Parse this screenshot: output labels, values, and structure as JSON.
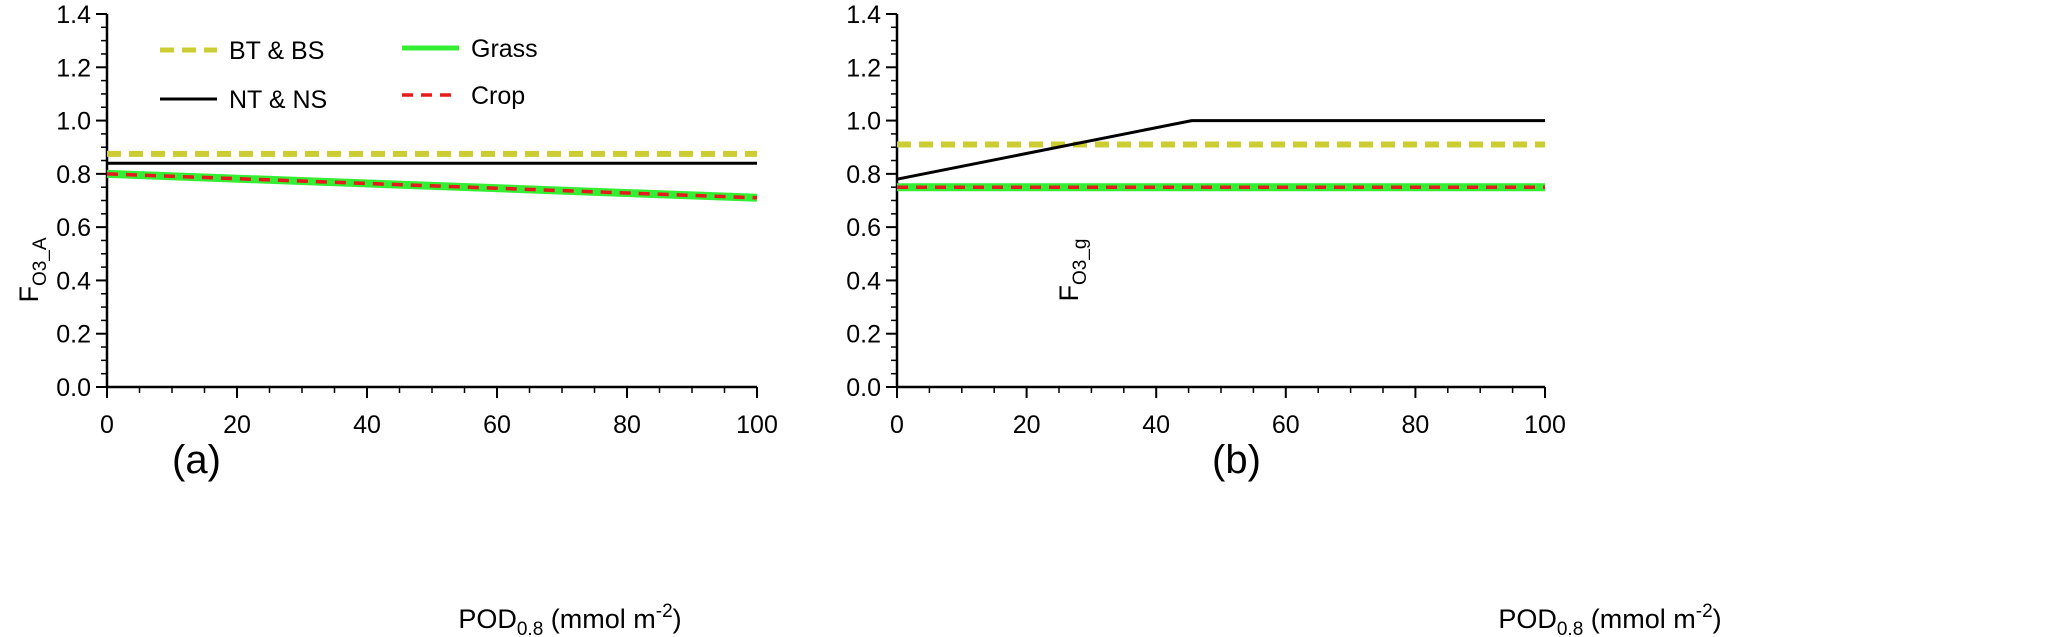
{
  "chart_data": [
    {
      "type": "line",
      "panel_label": "(a)",
      "ylabel": {
        "main": "F",
        "sub": "O3_A"
      },
      "xlabel": {
        "main": "POD",
        "sub": "0.8",
        "unit_pre": " (mmol m",
        "unit_sup": "-2",
        "unit_post": ")"
      },
      "xlim": [
        0,
        100
      ],
      "ylim": [
        0,
        1.4
      ],
      "xticks": [
        "0",
        "20",
        "40",
        "60",
        "80",
        "100"
      ],
      "yticks": [
        "0.0",
        "0.2",
        "0.4",
        "0.6",
        "0.8",
        "1.0",
        "1.2",
        "1.4"
      ],
      "grid": false,
      "legend_placement": "top-left",
      "series": [
        {
          "name": "BT & BS",
          "style": "dashed",
          "color": "#cccc33",
          "x": [
            0,
            100
          ],
          "y": [
            0.875,
            0.875
          ]
        },
        {
          "name": "NT & NS",
          "style": "solid",
          "color": "#000000",
          "x": [
            0,
            100
          ],
          "y": [
            0.84,
            0.84
          ]
        },
        {
          "name": "Grass",
          "style": "solid",
          "color": "#33ee33",
          "x": [
            0,
            100
          ],
          "y": [
            0.8,
            0.71
          ]
        },
        {
          "name": "Crop",
          "style": "dashed",
          "color": "#e51a1a",
          "x": [
            0,
            100
          ],
          "y": [
            0.8,
            0.71
          ]
        }
      ]
    },
    {
      "type": "line",
      "panel_label": "(b)",
      "ylabel": {
        "main": "F",
        "sub": "O3_g"
      },
      "xlabel": {
        "main": "POD",
        "sub": "0.8",
        "unit_pre": " (mmol m",
        "unit_sup": "-2",
        "unit_post": ")"
      },
      "xlim": [
        0,
        100
      ],
      "ylim": [
        0,
        1.4
      ],
      "xticks": [
        "0",
        "20",
        "40",
        "60",
        "80",
        "100"
      ],
      "yticks": [
        "0.0",
        "0.2",
        "0.4",
        "0.6",
        "0.8",
        "1.0",
        "1.2",
        "1.4"
      ],
      "grid": false,
      "series": [
        {
          "name": "BT & BS",
          "style": "dashed",
          "color": "#cccc33",
          "x": [
            0,
            100
          ],
          "y": [
            0.91,
            0.91
          ]
        },
        {
          "name": "NT & NS",
          "style": "solid",
          "color": "#000000",
          "x": [
            0,
            45.5,
            100
          ],
          "y": [
            0.78,
            1.0,
            1.0
          ]
        },
        {
          "name": "Grass",
          "style": "solid",
          "color": "#33ee33",
          "x": [
            0,
            100
          ],
          "y": [
            0.75,
            0.75
          ]
        },
        {
          "name": "Crop",
          "style": "dashed",
          "color": "#e51a1a",
          "x": [
            0,
            100
          ],
          "y": [
            0.75,
            0.75
          ]
        }
      ]
    }
  ]
}
